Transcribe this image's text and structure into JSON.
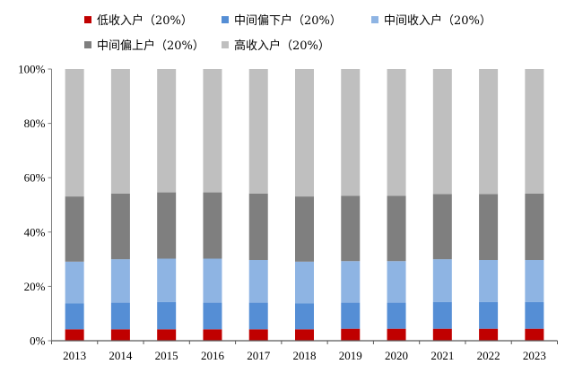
{
  "chart_data": {
    "type": "bar",
    "stacked": true,
    "title": "",
    "xlabel": "",
    "ylabel": "",
    "ylim": [
      0,
      100
    ],
    "y_ticks": [
      "0%",
      "20%",
      "40%",
      "60%",
      "80%",
      "100%"
    ],
    "grid": false,
    "legend_position": "top",
    "categories": [
      "2013",
      "2014",
      "2015",
      "2016",
      "2017",
      "2018",
      "2019",
      "2020",
      "2021",
      "2022",
      "2023"
    ],
    "series": [
      {
        "name": "低收入户（20%）",
        "color": "#C00000",
        "values": [
          4.2,
          4.2,
          4.2,
          4.2,
          4.2,
          4.2,
          4.4,
          4.4,
          4.4,
          4.4,
          4.4
        ]
      },
      {
        "name": "中间偏下户（20%）",
        "color": "#558ED5",
        "values": [
          9.5,
          9.8,
          10.0,
          9.8,
          9.8,
          9.5,
          9.6,
          9.6,
          9.8,
          9.8,
          9.8
        ]
      },
      {
        "name": "中间收入户（20%）",
        "color": "#8EB4E3",
        "values": [
          15.4,
          16.0,
          16.0,
          16.2,
          15.7,
          15.4,
          15.3,
          15.3,
          15.8,
          15.5,
          15.5
        ]
      },
      {
        "name": "中间偏上户（20%）",
        "color": "#7F7F7F",
        "values": [
          24.0,
          24.2,
          24.4,
          24.4,
          24.5,
          24.0,
          24.0,
          24.0,
          24.0,
          24.3,
          24.5
        ]
      },
      {
        "name": "高收入户（20%）",
        "color": "#BFBFBF",
        "values": [
          46.9,
          45.8,
          45.4,
          45.4,
          45.8,
          46.9,
          46.7,
          46.7,
          46.0,
          46.0,
          45.8
        ]
      }
    ]
  }
}
